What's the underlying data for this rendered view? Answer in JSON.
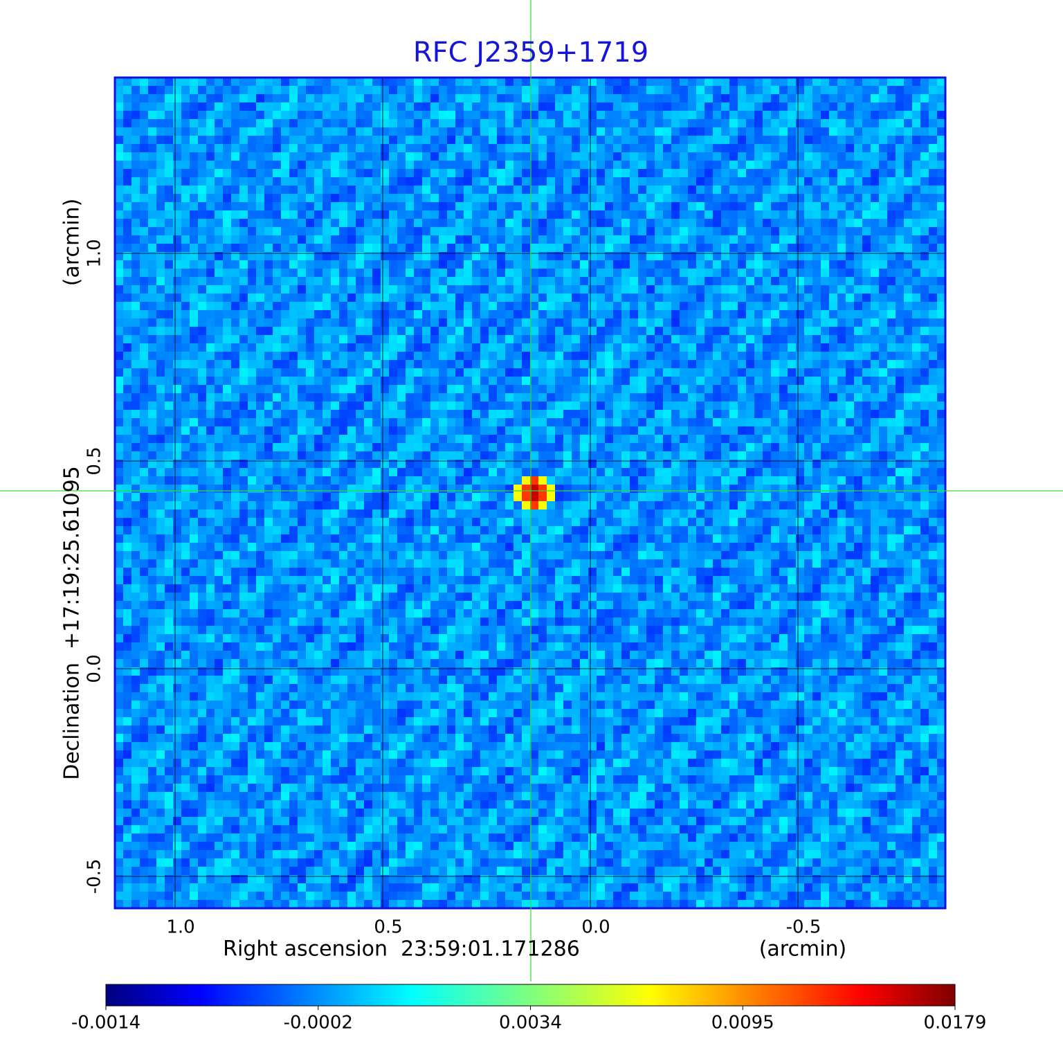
{
  "chart_data": {
    "type": "image",
    "title": "RFC J2359+1719",
    "x_label": "Right ascension  23:59:01.171286",
    "x_unit": "(arcmin)",
    "y_label": "Declination  +17:19:25.61095",
    "y_unit": "(arcmin)",
    "xlim": [
      1.145,
      -0.855
    ],
    "ylim": [
      -0.5767,
      1.4233
    ],
    "xticks": [
      {
        "value": 1,
        "label": "1.0"
      },
      {
        "value": 0.5,
        "label": "0.5"
      },
      {
        "value": 0,
        "label": "0.0"
      },
      {
        "value": -0.5,
        "label": "-0.5"
      }
    ],
    "yticks": [
      {
        "value": 1,
        "label": "1.0"
      },
      {
        "value": 0.5,
        "label": "0.5"
      },
      {
        "value": 0,
        "label": "0.0"
      },
      {
        "value": -0.5,
        "label": "-0.5"
      }
    ],
    "grid": true,
    "colormap": "jet",
    "colorbar_ticks": [
      -0.0014,
      -0.0002,
      0.0034,
      0.0095,
      0.0179
    ]
  }
}
